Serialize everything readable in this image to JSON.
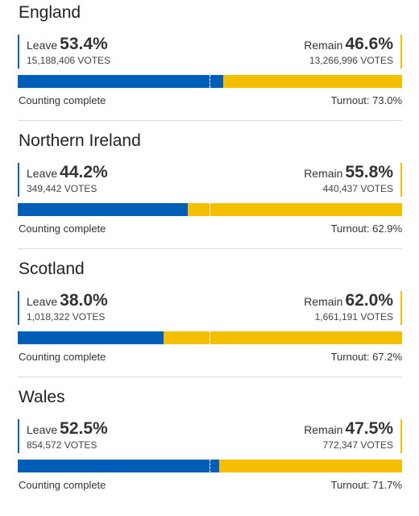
{
  "regions": [
    {
      "name": "England",
      "leave_label": "Leave",
      "leave_pct": "53.4%",
      "leave_votes": "15,188,406 VOTES",
      "remain_label": "Remain",
      "remain_pct": "46.6%",
      "remain_votes": "13,266,996 VOTES",
      "leave_share": 53.4,
      "status": "Counting complete",
      "turnout": "Turnout: 73.0%"
    },
    {
      "name": "Northern Ireland",
      "leave_label": "Leave",
      "leave_pct": "44.2%",
      "leave_votes": "349,442 VOTES",
      "remain_label": "Remain",
      "remain_pct": "55.8%",
      "remain_votes": "440,437 VOTES",
      "leave_share": 44.2,
      "status": "Counting complete",
      "turnout": "Turnout: 62.9%"
    },
    {
      "name": "Scotland",
      "leave_label": "Leave",
      "leave_pct": "38.0%",
      "leave_votes": "1,018,322 VOTES",
      "remain_label": "Remain",
      "remain_pct": "62.0%",
      "remain_votes": "1,661,191 VOTES",
      "leave_share": 38.0,
      "status": "Counting complete",
      "turnout": "Turnout: 67.2%"
    },
    {
      "name": "Wales",
      "leave_label": "Leave",
      "leave_pct": "52.5%",
      "leave_votes": "854,572 VOTES",
      "remain_label": "Remain",
      "remain_pct": "47.5%",
      "remain_votes": "772,347 VOTES",
      "leave_share": 52.5,
      "status": "Counting complete",
      "turnout": "Turnout: 71.7%"
    }
  ],
  "colors": {
    "leave": "#005EB8",
    "remain": "#F4BF00"
  }
}
